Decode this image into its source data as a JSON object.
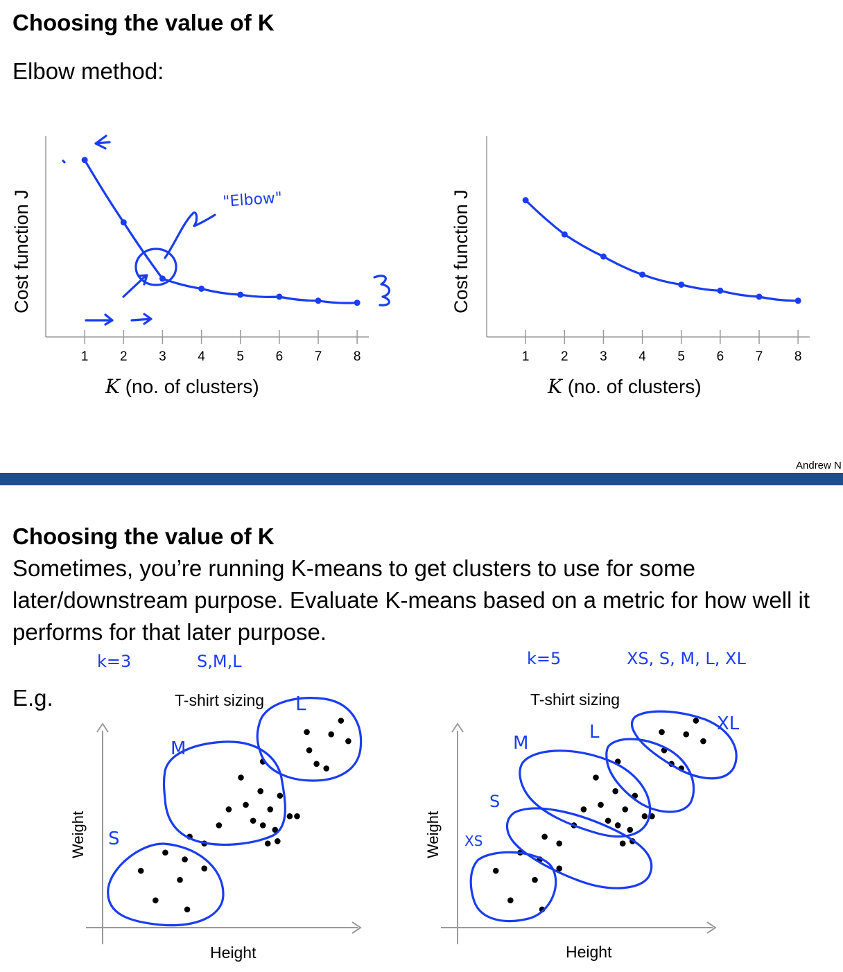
{
  "slide1": {
    "title": "Choosing the value of K",
    "subtitle": "Elbow method:",
    "credit": "Andrew N"
  },
  "slide2": {
    "title": "Choosing the value of K",
    "body": "Sometimes, you’re running K-means to get clusters to use for some later/downstream purpose. Evaluate K-means based on a metric for how well it performs for that later purpose.",
    "eg": "E.g."
  },
  "annotations": {
    "elbow": "\"Elbow\"",
    "k3": "k=3",
    "sml": "S,M,L",
    "k5": "k=5",
    "xs_xl": "XS, S, M, L, XL",
    "s": "S",
    "m": "M",
    "l": "L",
    "xs": "XS",
    "xl": "XL"
  },
  "chart_data": [
    {
      "type": "line",
      "xlabel": "K (no. of clusters)",
      "ylabel": "Cost function J",
      "x": [
        1,
        2,
        3,
        4,
        5,
        6,
        7,
        8
      ],
      "series": [
        {
          "values": [
            0.88,
            0.57,
            0.29,
            0.24,
            0.21,
            0.2,
            0.18,
            0.17
          ]
        }
      ],
      "xlim": [
        0,
        8.3
      ],
      "ylim": [
        0,
        1
      ],
      "grid": false
    },
    {
      "type": "line",
      "xlabel": "K (no. of clusters)",
      "ylabel": "Cost function J",
      "x": [
        1,
        2,
        3,
        4,
        5,
        6,
        7,
        8
      ],
      "series": [
        {
          "values": [
            0.68,
            0.51,
            0.4,
            0.31,
            0.26,
            0.23,
            0.2,
            0.18
          ]
        }
      ],
      "xlim": [
        0,
        8.3
      ],
      "ylim": [
        0,
        1
      ],
      "grid": false
    },
    {
      "type": "scatter",
      "title": "T-shirt sizing",
      "xlabel": "Height",
      "ylabel": "Weight",
      "points": [
        [
          0.1,
          0.25
        ],
        [
          0.16,
          0.12
        ],
        [
          0.2,
          0.33
        ],
        [
          0.26,
          0.21
        ],
        [
          0.28,
          0.3
        ],
        [
          0.36,
          0.26
        ],
        [
          0.29,
          0.08
        ],
        [
          0.3,
          0.4
        ],
        [
          0.36,
          0.37
        ],
        [
          0.42,
          0.45
        ],
        [
          0.46,
          0.52
        ],
        [
          0.53,
          0.54
        ],
        [
          0.56,
          0.47
        ],
        [
          0.6,
          0.45
        ],
        [
          0.62,
          0.37
        ],
        [
          0.66,
          0.38
        ],
        [
          0.74,
          0.49
        ],
        [
          0.51,
          0.66
        ],
        [
          0.59,
          0.6
        ],
        [
          0.6,
          0.73
        ],
        [
          0.63,
          0.52
        ],
        [
          0.67,
          0.58
        ],
        [
          0.71,
          0.49
        ],
        [
          0.65,
          0.43
        ],
        [
          0.79,
          0.78
        ],
        [
          0.86,
          0.7
        ],
        [
          0.88,
          0.85
        ],
        [
          0.92,
          0.91
        ],
        [
          0.95,
          0.82
        ],
        [
          0.78,
          0.86
        ],
        [
          0.82,
          0.72
        ]
      ]
    },
    {
      "type": "scatter",
      "title": "T-shirt sizing",
      "xlabel": "Height",
      "ylabel": "Weight",
      "points": [
        [
          0.1,
          0.25
        ],
        [
          0.16,
          0.12
        ],
        [
          0.2,
          0.33
        ],
        [
          0.26,
          0.21
        ],
        [
          0.28,
          0.3
        ],
        [
          0.36,
          0.26
        ],
        [
          0.29,
          0.08
        ],
        [
          0.3,
          0.4
        ],
        [
          0.36,
          0.37
        ],
        [
          0.42,
          0.45
        ],
        [
          0.46,
          0.52
        ],
        [
          0.53,
          0.54
        ],
        [
          0.56,
          0.47
        ],
        [
          0.6,
          0.45
        ],
        [
          0.62,
          0.37
        ],
        [
          0.66,
          0.38
        ],
        [
          0.74,
          0.49
        ],
        [
          0.51,
          0.66
        ],
        [
          0.59,
          0.6
        ],
        [
          0.6,
          0.73
        ],
        [
          0.63,
          0.52
        ],
        [
          0.67,
          0.58
        ],
        [
          0.71,
          0.49
        ],
        [
          0.65,
          0.43
        ],
        [
          0.79,
          0.78
        ],
        [
          0.86,
          0.7
        ],
        [
          0.88,
          0.85
        ],
        [
          0.92,
          0.91
        ],
        [
          0.95,
          0.82
        ],
        [
          0.78,
          0.86
        ],
        [
          0.82,
          0.72
        ]
      ]
    }
  ]
}
